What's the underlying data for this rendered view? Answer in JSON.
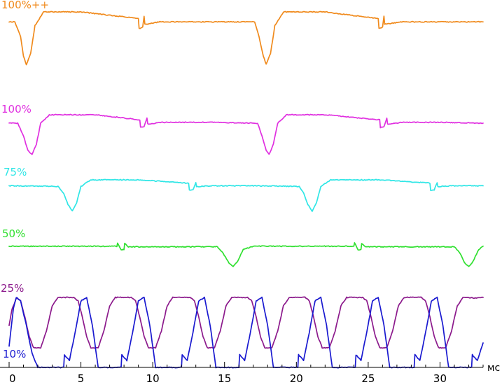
{
  "chart_data": {
    "type": "line",
    "title": "",
    "xlabel": "мс",
    "ylabel": "",
    "xlim": [
      0,
      33
    ],
    "x_ticks": [
      "0",
      "5",
      "10",
      "15",
      "20",
      "25",
      "30"
    ],
    "grid": false,
    "legend": "none",
    "series": [
      {
        "name": "100%++",
        "color": "#f08a1c",
        "x": [
          0,
          0.4,
          0.8,
          1.0,
          1.2,
          1.5,
          1.8,
          2.4,
          5,
          9.0,
          9.05,
          9.3,
          9.4,
          9.45,
          9.6,
          10.5,
          14,
          17.1,
          17.4,
          17.7,
          17.9,
          18.2,
          18.5,
          19.1,
          22,
          25.7,
          25.75,
          26.0,
          26.1,
          26.15,
          26.3,
          27.2,
          30,
          33
        ],
        "values": [
          0.82,
          0.82,
          0.55,
          0.2,
          0.05,
          0.25,
          0.75,
          1.0,
          1.0,
          0.88,
          0.7,
          0.72,
          0.92,
          0.78,
          0.78,
          0.82,
          0.82,
          0.82,
          0.55,
          0.2,
          0.05,
          0.25,
          0.75,
          1.0,
          1.0,
          0.88,
          0.7,
          0.72,
          0.92,
          0.78,
          0.78,
          0.82,
          0.82,
          0.82
        ]
      },
      {
        "name": "100%",
        "color": "#e030e0",
        "x": [
          0,
          0.6,
          1.0,
          1.3,
          1.6,
          1.9,
          2.2,
          2.8,
          6,
          9.1,
          9.15,
          9.4,
          9.6,
          9.65,
          9.8,
          10.6,
          14,
          17.3,
          17.6,
          17.9,
          18.1,
          18.4,
          18.7,
          19.3,
          22,
          25.8,
          25.85,
          26.1,
          26.3,
          26.35,
          26.5,
          27.3,
          30,
          33
        ],
        "values": [
          0.8,
          0.8,
          0.5,
          0.15,
          0.05,
          0.3,
          0.8,
          1.0,
          1.0,
          0.88,
          0.7,
          0.72,
          0.92,
          0.78,
          0.78,
          0.82,
          0.82,
          0.8,
          0.5,
          0.15,
          0.05,
          0.3,
          0.8,
          1.0,
          1.0,
          0.88,
          0.7,
          0.72,
          0.92,
          0.78,
          0.78,
          0.82,
          0.82,
          0.8
        ]
      },
      {
        "name": "75%",
        "color": "#30e6e6",
        "x": [
          0,
          3.4,
          3.8,
          4.1,
          4.4,
          4.7,
          5.0,
          5.7,
          9,
          12.5,
          12.55,
          12.8,
          13.0,
          13.05,
          13.2,
          14,
          17,
          20.2,
          20.5,
          20.8,
          21.1,
          21.4,
          21.7,
          22.4,
          26,
          29.3,
          29.35,
          29.6,
          29.8,
          29.85,
          30.0,
          30.8,
          33
        ],
        "values": [
          0.82,
          0.8,
          0.6,
          0.25,
          0.05,
          0.3,
          0.8,
          1.0,
          1.0,
          0.9,
          0.68,
          0.7,
          0.92,
          0.8,
          0.8,
          0.82,
          0.82,
          0.8,
          0.6,
          0.25,
          0.05,
          0.3,
          0.8,
          1.0,
          1.0,
          0.9,
          0.68,
          0.7,
          0.92,
          0.8,
          0.8,
          0.82,
          0.82
        ]
      },
      {
        "name": "50%",
        "color": "#30e030",
        "x": [
          0,
          7.5,
          7.55,
          7.8,
          8.0,
          8.05,
          8.3,
          14.5,
          14.9,
          15.3,
          15.6,
          15.9,
          16.3,
          17.0,
          24,
          24.05,
          24.3,
          24.5,
          24.55,
          24.8,
          31.0,
          31.4,
          31.7,
          32.0,
          32.3,
          32.7,
          33
        ],
        "values": [
          0.82,
          0.82,
          0.95,
          0.68,
          0.7,
          0.92,
          0.8,
          0.8,
          0.55,
          0.2,
          0.05,
          0.25,
          0.7,
          0.82,
          0.82,
          0.95,
          0.68,
          0.7,
          0.92,
          0.8,
          0.8,
          0.55,
          0.2,
          0.05,
          0.25,
          0.7,
          0.82
        ]
      },
      {
        "name": "25%",
        "color": "#8c1a8c",
        "x": [
          0,
          0.2,
          0.5,
          0.8,
          1.1,
          1.4,
          1.7,
          2.2,
          2.6,
          3.0,
          3.4,
          4.5,
          4.8,
          5.1,
          5.4,
          5.7,
          6.2,
          6.6,
          7.0,
          7.4,
          8.5,
          8.8,
          9.1,
          9.4,
          9.7,
          10.2,
          10.6,
          11.0,
          11.4,
          12.6,
          12.9,
          13.2,
          13.5,
          13.8,
          14.3,
          14.7,
          15.1,
          15.5,
          16.6,
          16.9,
          17.2,
          17.5,
          17.8,
          18.3,
          18.7,
          19.1,
          19.5,
          20.6,
          20.9,
          21.2,
          21.5,
          21.8,
          22.3,
          22.7,
          23.1,
          23.5,
          24.6,
          24.9,
          25.2,
          25.5,
          25.8,
          26.3,
          26.7,
          27.1,
          27.5,
          28.7,
          29.0,
          29.3,
          29.6,
          29.9,
          30.4,
          30.8,
          31.2,
          31.6,
          32.6,
          33
        ],
        "values": [
          0.5,
          0.78,
          0.99,
          0.94,
          0.65,
          0.3,
          0.1,
          0.1,
          0.4,
          0.85,
          1.0,
          1.0,
          0.94,
          0.65,
          0.3,
          0.1,
          0.1,
          0.4,
          0.85,
          1.0,
          1.0,
          0.94,
          0.65,
          0.3,
          0.1,
          0.1,
          0.4,
          0.85,
          1.0,
          1.0,
          0.94,
          0.65,
          0.3,
          0.1,
          0.1,
          0.4,
          0.85,
          1.0,
          1.0,
          0.94,
          0.65,
          0.3,
          0.1,
          0.1,
          0.4,
          0.85,
          1.0,
          1.0,
          0.94,
          0.65,
          0.3,
          0.1,
          0.1,
          0.4,
          0.85,
          1.0,
          1.0,
          0.94,
          0.65,
          0.3,
          0.1,
          0.1,
          0.4,
          0.85,
          1.0,
          1.0,
          0.94,
          0.65,
          0.3,
          0.1,
          0.1,
          0.4,
          0.85,
          1.0,
          0.99,
          1.0
        ]
      },
      {
        "name": "10%",
        "color": "#1a1ad0",
        "x": [
          0,
          0.3,
          0.5,
          0.8,
          1.2,
          1.6,
          2.0,
          3.8,
          3.85,
          4.2,
          4.6,
          5.0,
          5.4,
          5.8,
          6.2,
          7.8,
          7.85,
          8.2,
          8.6,
          9.0,
          9.4,
          9.8,
          10.2,
          12.0,
          12.05,
          12.4,
          12.8,
          13.2,
          13.6,
          14.0,
          14.4,
          16.0,
          16.05,
          16.4,
          16.8,
          17.2,
          17.6,
          18.0,
          18.4,
          20.1,
          20.15,
          20.5,
          20.9,
          21.3,
          21.7,
          22.1,
          22.5,
          24.1,
          24.15,
          24.5,
          24.9,
          25.3,
          25.7,
          26.1,
          26.5,
          28.2,
          28.25,
          28.6,
          29.0,
          29.4,
          29.8,
          30.2,
          30.6,
          32.2,
          32.25,
          32.6,
          33
        ],
        "values": [
          0.3,
          0.85,
          1.0,
          0.95,
          0.6,
          0.2,
          0.0,
          0.0,
          0.18,
          0.1,
          0.5,
          0.95,
          1.0,
          0.6,
          0.0,
          0.0,
          0.18,
          0.1,
          0.5,
          0.95,
          1.0,
          0.6,
          0.0,
          0.0,
          0.18,
          0.1,
          0.5,
          0.95,
          1.0,
          0.6,
          0.0,
          0.0,
          0.18,
          0.1,
          0.5,
          0.95,
          1.0,
          0.6,
          0.0,
          0.0,
          0.18,
          0.1,
          0.5,
          0.95,
          1.0,
          0.6,
          0.0,
          0.0,
          0.18,
          0.1,
          0.5,
          0.95,
          1.0,
          0.6,
          0.0,
          0.0,
          0.18,
          0.1,
          0.5,
          0.95,
          1.0,
          0.6,
          0.0,
          0.0,
          0.18,
          0.1,
          0.35
        ]
      }
    ]
  }
}
